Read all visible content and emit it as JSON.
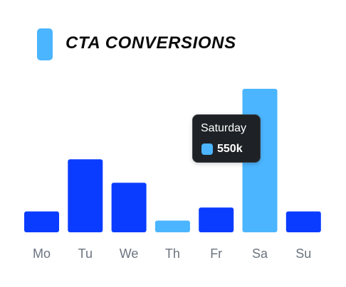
{
  "colors": {
    "bar": "#0a3cff",
    "highlight": "#4bb5ff",
    "axis_text": "#6b7480",
    "title_text": "#0b0b0b",
    "tooltip_bg": "#1e2226"
  },
  "legend": {
    "title": "CTA CONVERSIONS"
  },
  "tooltip": {
    "title": "Saturday",
    "value": "550k"
  },
  "chart_data": {
    "type": "bar",
    "title": "CTA CONVERSIONS",
    "categories": [
      "Mo",
      "Tu",
      "We",
      "Th",
      "Fr",
      "Sa",
      "Su"
    ],
    "values": [
      80,
      280,
      190,
      45,
      95,
      550,
      80
    ],
    "highlighted": [
      "Th",
      "Sa"
    ],
    "ylim": [
      0,
      550
    ],
    "grid": false,
    "xlabel": "",
    "ylabel": ""
  }
}
